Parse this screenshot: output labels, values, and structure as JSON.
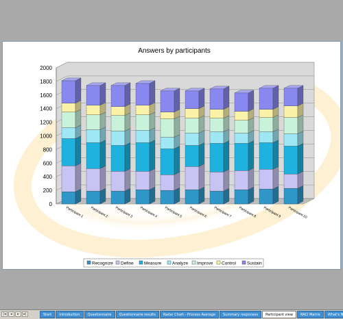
{
  "chart_data": {
    "type": "bar",
    "stacked": true,
    "three_d": true,
    "title": "Answers by participants",
    "categories": [
      "Participant 1",
      "Participant 2",
      "Participant 3",
      "Participant 4",
      "Participant 5",
      "Participant 6",
      "Participant 7",
      "Participant 8",
      "Participant 9",
      "Participant 10"
    ],
    "ylim": [
      0,
      2000
    ],
    "yticks": [
      0,
      200,
      400,
      600,
      800,
      1000,
      1200,
      1400,
      1600,
      1800,
      2000
    ],
    "grid": true,
    "legend_position": "bottom",
    "series": [
      {
        "name": "Recognize",
        "color": "#2f96c8",
        "values": [
          180,
          190,
          190,
          210,
          200,
          210,
          190,
          210,
          220,
          230
        ]
      },
      {
        "name": "Define",
        "color": "#c7c3f2",
        "values": [
          380,
          330,
          290,
          270,
          230,
          340,
          280,
          280,
          290,
          210
        ]
      },
      {
        "name": "Measure",
        "color": "#1fb2df",
        "values": [
          400,
          380,
          380,
          420,
          380,
          310,
          420,
          400,
          390,
          410
        ]
      },
      {
        "name": "Analyze",
        "color": "#9fe7f5",
        "values": [
          160,
          190,
          210,
          180,
          170,
          180,
          170,
          150,
          160,
          180
        ]
      },
      {
        "name": "Improve",
        "color": "#c8f2da",
        "values": [
          230,
          220,
          230,
          230,
          270,
          220,
          200,
          190,
          210,
          240
        ]
      },
      {
        "name": "Control",
        "color": "#fbf2a9",
        "values": [
          130,
          140,
          130,
          140,
          100,
          140,
          130,
          130,
          120,
          170
        ]
      },
      {
        "name": "Sustain",
        "color": "#8888ee",
        "values": [
          330,
          290,
          310,
          320,
          310,
          260,
          300,
          270,
          310,
          260
        ]
      }
    ]
  },
  "workbook": {
    "nav_buttons": [
      "|◂",
      "◂",
      "▸",
      "▸|"
    ],
    "tabs": [
      "Start",
      "Introduction",
      "Questionnaire",
      "Questionnaire results",
      "Radar Chart - Process Average",
      "Summary responses",
      "Participant view",
      "RACI Matrix",
      "What's Next"
    ],
    "active_tab_index": 6
  }
}
